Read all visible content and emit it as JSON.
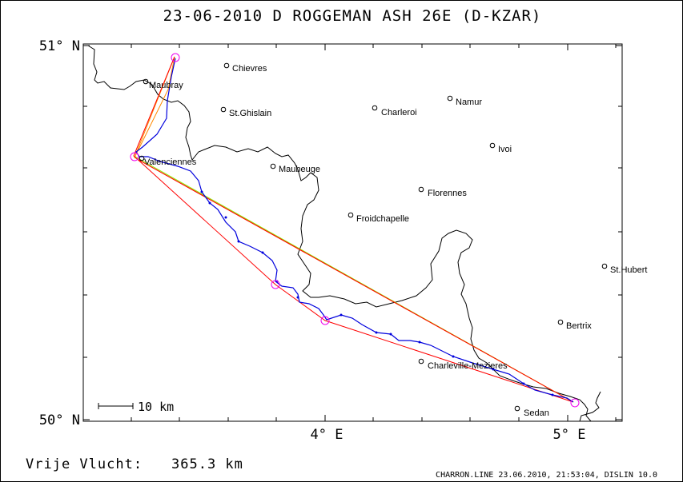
{
  "title": "23-06-2010   D ROGGEMAN   ASH 26E (D-KZAR)",
  "axis": {
    "lat_top": "51° N",
    "lat_bottom": "50° N",
    "lon_4": "4° E",
    "lon_5": "5° E"
  },
  "scale_label": "10 km",
  "towns": [
    {
      "name": "Chievres"
    },
    {
      "name": "Maubray"
    },
    {
      "name": "St.Ghislain"
    },
    {
      "name": "Charleroi"
    },
    {
      "name": "Namur"
    },
    {
      "name": "Ivoi"
    },
    {
      "name": "Valenciennes"
    },
    {
      "name": "Maubeuge"
    },
    {
      "name": "Florennes"
    },
    {
      "name": "Froidchapelle"
    },
    {
      "name": "St.Hubert"
    },
    {
      "name": "Bertrix"
    },
    {
      "name": "Charleville-Mezieres"
    },
    {
      "name": "Sedan"
    }
  ],
  "footer": {
    "distance_label": "Vrije Vlucht:",
    "distance_value": "365.3 km",
    "credit": "CHARRON.LINE 23.06.2010, 21:53:04, DISLIN 10.0"
  },
  "colors": {
    "track": "#0000dd",
    "leg": "#ff0000",
    "orange": "#ff8800",
    "green": "#88ee00",
    "turnpoint": "#ee00ee",
    "border": "#000000"
  }
}
